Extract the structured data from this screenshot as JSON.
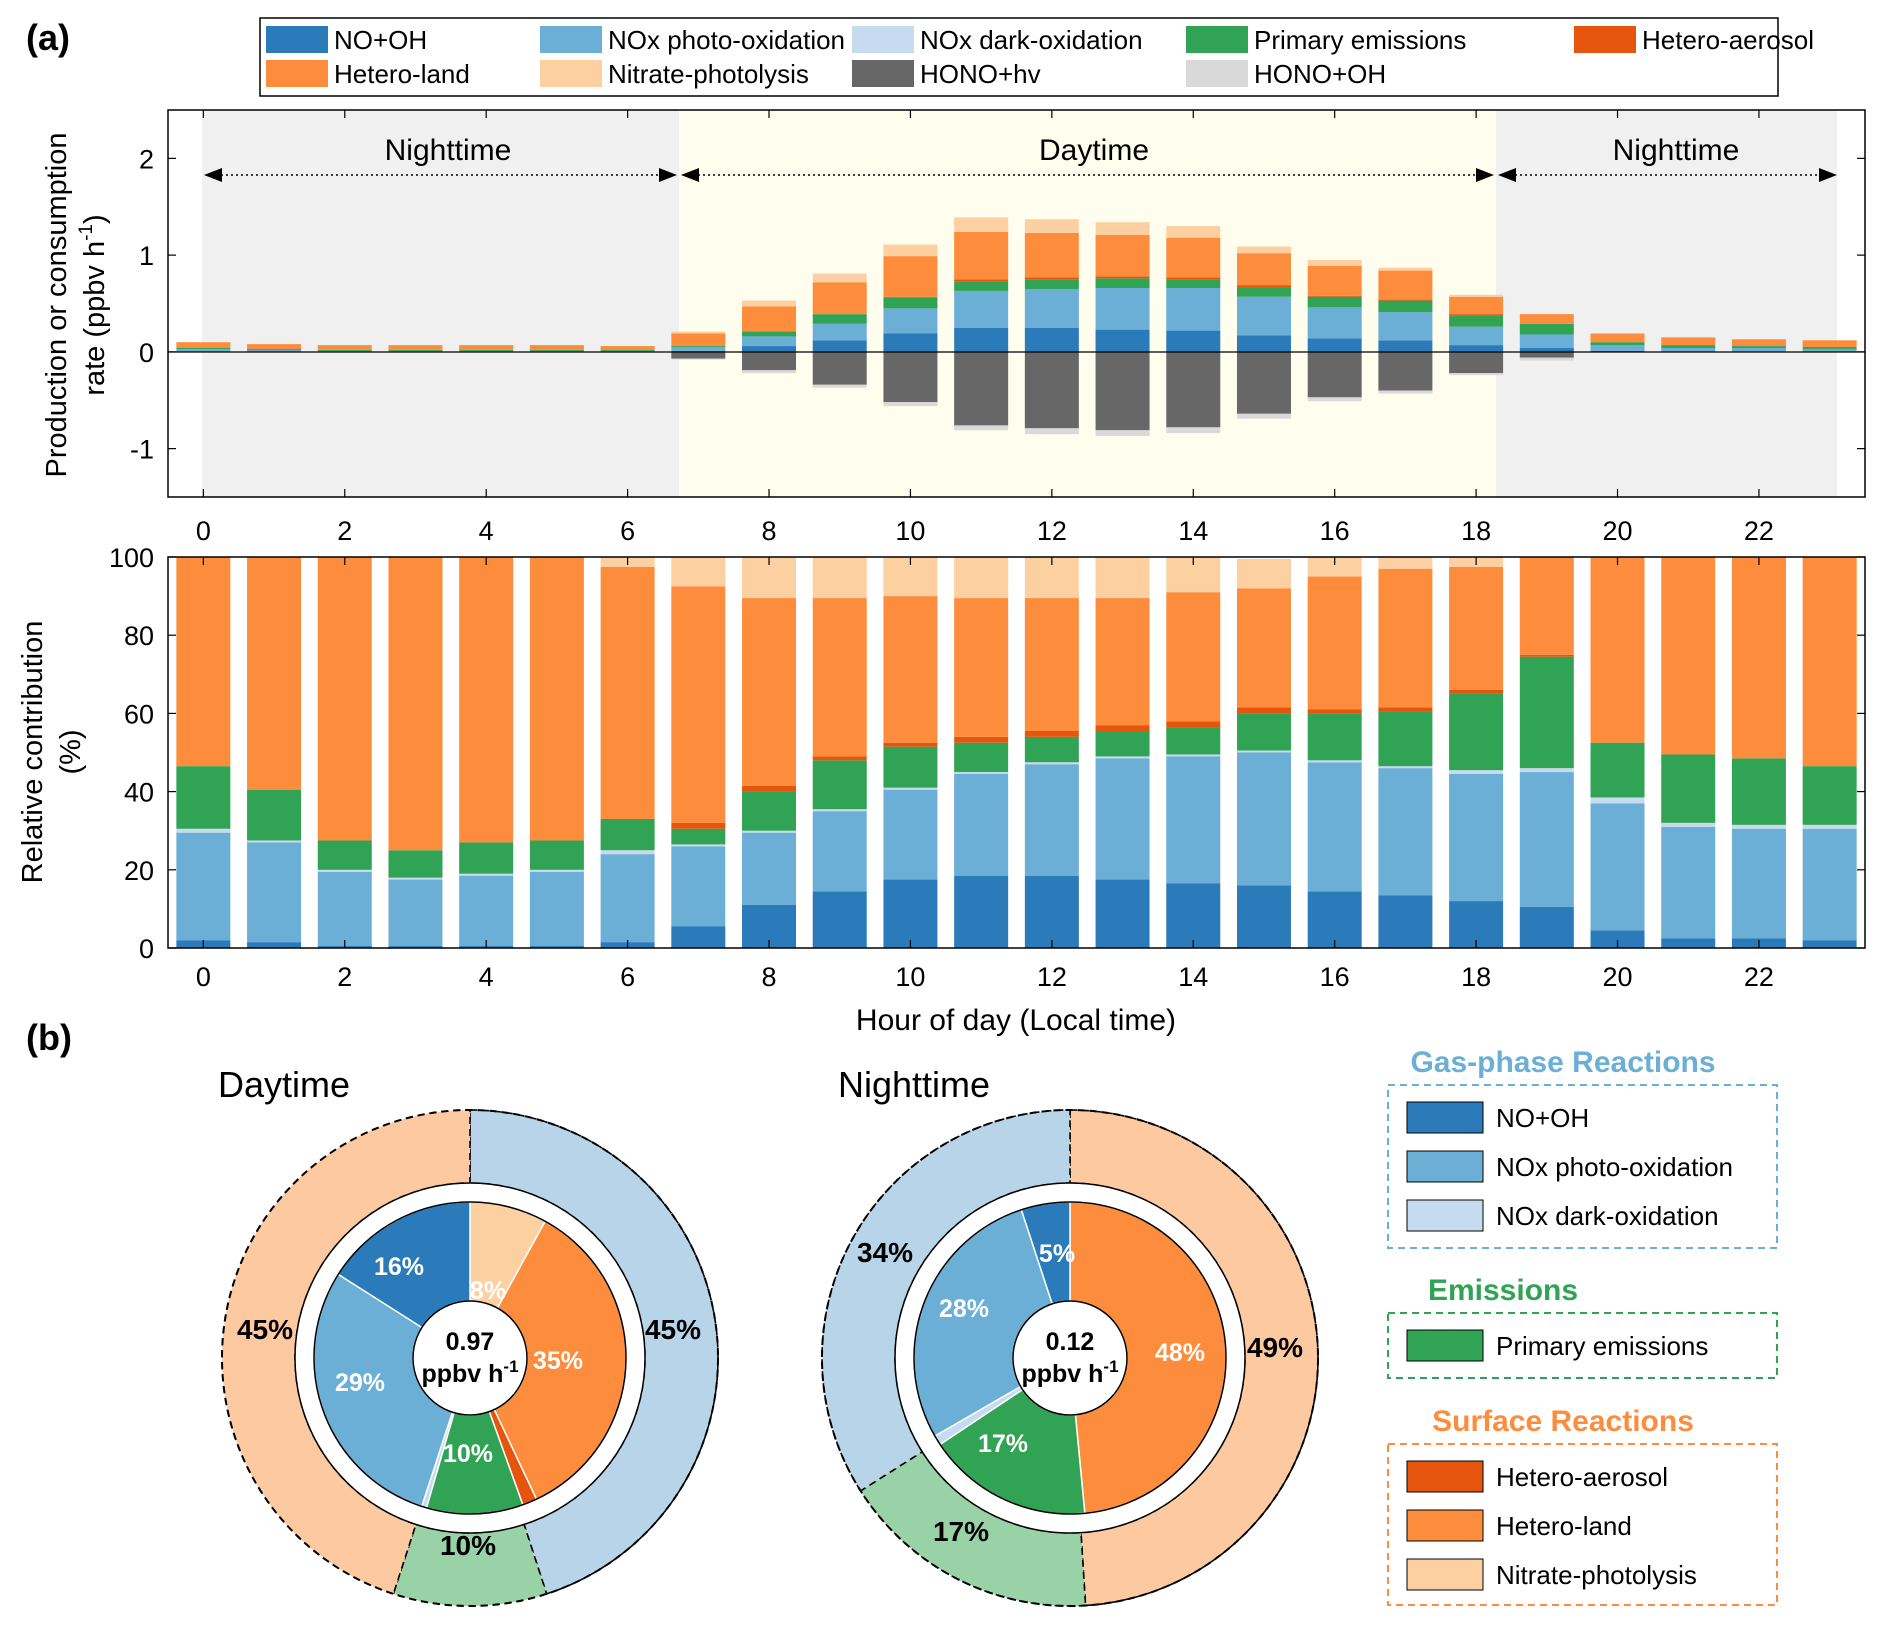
{
  "panel_labels": {
    "a": "(a)",
    "b": "(b)"
  },
  "colors": {
    "no_oh": "#2b7bba",
    "nox_photo": "#6baed6",
    "nox_dark": "#c6dbef",
    "primary": "#31a354",
    "hetero_aerosol": "#e6550d",
    "hetero_land": "#fd8d3c",
    "nitrate": "#fdd0a2",
    "hono_hv": "#676767",
    "hono_oh": "#d9d9d9",
    "night_bg": "#f0f0f0",
    "day_bg": "#fefdee"
  },
  "legend_top": {
    "items": [
      {
        "key": "no_oh",
        "label": "NO+OH"
      },
      {
        "key": "nox_photo",
        "label": "NOx photo-oxidation"
      },
      {
        "key": "nox_dark",
        "label": "NOx dark-oxidation"
      },
      {
        "key": "primary",
        "label": "Primary emissions"
      },
      {
        "key": "hetero_aerosol",
        "label": "Hetero-aerosol"
      },
      {
        "key": "hetero_land",
        "label": "Hetero-land"
      },
      {
        "key": "nitrate",
        "label": "Nitrate-photolysis"
      },
      {
        "key": "hono_hv",
        "label": "HONO+hv"
      },
      {
        "key": "hono_oh",
        "label": "HONO+OH"
      }
    ]
  },
  "period_labels": {
    "night1": "Nighttime",
    "day": "Daytime",
    "night2": "Nighttime"
  },
  "legend_right": {
    "groups": [
      {
        "title": "Gas-phase Reactions",
        "title_color": "#6baed6",
        "border_color": "#6baed6",
        "items": [
          {
            "key": "no_oh",
            "label": "NO+OH"
          },
          {
            "key": "nox_photo",
            "label": "NOx photo-oxidation"
          },
          {
            "key": "nox_dark",
            "label": "NOx dark-oxidation"
          }
        ]
      },
      {
        "title": "Emissions",
        "title_color": "#31a354",
        "border_color": "#31a354",
        "items": [
          {
            "key": "primary",
            "label": "Primary emissions"
          }
        ]
      },
      {
        "title": "Surface Reactions",
        "title_color": "#fd8d3c",
        "border_color": "#fd8d3c",
        "items": [
          {
            "key": "hetero_aerosol",
            "label": "Hetero-aerosol"
          },
          {
            "key": "hetero_land",
            "label": "Hetero-land"
          },
          {
            "key": "nitrate",
            "label": "Nitrate-photolysis"
          }
        ]
      }
    ]
  },
  "chart_data": [
    {
      "type": "bar",
      "stacked": true,
      "title": "",
      "xlabel": "",
      "ylabel": "Production or consumption rate (ppbv h-1)",
      "ylabel_line1": "Production or consumption",
      "ylabel_line2": "rate (ppbv h",
      "ylabel_sup": "-1",
      "ylabel_close": ")",
      "xlim": [
        -0.5,
        23.5
      ],
      "ylim": [
        -1.5,
        2.5
      ],
      "xticks": [
        0,
        2,
        4,
        6,
        8,
        10,
        12,
        14,
        16,
        18,
        20,
        22
      ],
      "yticks": [
        -1,
        0,
        1,
        2
      ],
      "x": [
        0,
        1,
        2,
        3,
        4,
        5,
        6,
        7,
        8,
        9,
        10,
        11,
        12,
        13,
        14,
        15,
        16,
        17,
        18,
        19,
        20,
        21,
        22,
        23
      ],
      "series": [
        {
          "key": "no_oh",
          "name": "NO+OH",
          "values": [
            0,
            0,
            0,
            0,
            0,
            0,
            0,
            0.01,
            0.06,
            0.12,
            0.19,
            0.25,
            0.25,
            0.23,
            0.22,
            0.17,
            0.14,
            0.12,
            0.07,
            0.04,
            0.01,
            0,
            0,
            0
          ]
        },
        {
          "key": "nox_photo",
          "name": "NOx photo-oxidation",
          "values": [
            0.03,
            0.02,
            0.01,
            0.01,
            0.01,
            0.01,
            0.01,
            0.04,
            0.1,
            0.17,
            0.26,
            0.38,
            0.4,
            0.43,
            0.44,
            0.4,
            0.32,
            0.29,
            0.19,
            0.14,
            0.06,
            0.04,
            0.04,
            0.03
          ]
        },
        {
          "key": "nox_dark",
          "name": "NOx dark-oxidation",
          "values": [
            0,
            0,
            0,
            0,
            0,
            0,
            0,
            0,
            0,
            0,
            0,
            0,
            0,
            0,
            0,
            0,
            0,
            0,
            0,
            0,
            0,
            0,
            0,
            0
          ]
        },
        {
          "key": "primary",
          "name": "Primary emissions",
          "values": [
            0.01,
            0.01,
            0.01,
            0.01,
            0.01,
            0.01,
            0.01,
            0.01,
            0.05,
            0.1,
            0.11,
            0.1,
            0.1,
            0.1,
            0.09,
            0.1,
            0.11,
            0.12,
            0.12,
            0.11,
            0.03,
            0.03,
            0.02,
            0.02
          ]
        },
        {
          "key": "hetero_aerosol",
          "name": "Hetero-aerosol",
          "values": [
            0,
            0,
            0,
            0,
            0,
            0,
            0,
            0,
            0,
            0,
            0.01,
            0.02,
            0.02,
            0.02,
            0.02,
            0.02,
            0.01,
            0.01,
            0.01,
            0,
            0,
            0,
            0,
            0
          ]
        },
        {
          "key": "hetero_land",
          "name": "Hetero-land",
          "values": [
            0.06,
            0.05,
            0.05,
            0.05,
            0.05,
            0.05,
            0.04,
            0.13,
            0.26,
            0.33,
            0.42,
            0.49,
            0.46,
            0.43,
            0.41,
            0.33,
            0.31,
            0.3,
            0.18,
            0.1,
            0.09,
            0.08,
            0.07,
            0.07
          ]
        },
        {
          "key": "nitrate",
          "name": "Nitrate-photolysis",
          "values": [
            0,
            0,
            0,
            0,
            0,
            0,
            0,
            0.02,
            0.06,
            0.09,
            0.12,
            0.15,
            0.14,
            0.13,
            0.12,
            0.07,
            0.06,
            0.03,
            0.02,
            0,
            0,
            0,
            0,
            0
          ]
        },
        {
          "key": "hono_hv",
          "name": "HONO+hv",
          "values": [
            0,
            0,
            0,
            0,
            0,
            0,
            0,
            -0.07,
            -0.19,
            -0.34,
            -0.52,
            -0.76,
            -0.79,
            -0.81,
            -0.78,
            -0.64,
            -0.47,
            -0.4,
            -0.22,
            -0.06,
            0,
            0,
            0,
            0
          ]
        },
        {
          "key": "hono_oh",
          "name": "HONO+OH",
          "values": [
            0,
            0,
            0,
            0,
            0,
            0,
            0,
            -0.01,
            -0.03,
            -0.03,
            -0.04,
            -0.05,
            -0.06,
            -0.06,
            -0.06,
            -0.05,
            -0.04,
            -0.03,
            -0.02,
            -0.03,
            0,
            0,
            0,
            0
          ]
        }
      ]
    },
    {
      "type": "bar",
      "stacked": true,
      "title": "",
      "xlabel": "Hour of day (Local time)",
      "ylabel": "Relative contribution (%)",
      "ylabel_line1": "Relative contribution",
      "ylabel_line2": "(%)",
      "xlim": [
        -0.5,
        23.5
      ],
      "ylim": [
        0,
        100
      ],
      "xticks": [
        0,
        2,
        4,
        6,
        8,
        10,
        12,
        14,
        16,
        18,
        20,
        22
      ],
      "yticks": [
        0,
        20,
        40,
        60,
        80,
        100
      ],
      "x": [
        0,
        1,
        2,
        3,
        4,
        5,
        6,
        7,
        8,
        9,
        10,
        11,
        12,
        13,
        14,
        15,
        16,
        17,
        18,
        19,
        20,
        21,
        22,
        23
      ],
      "series": [
        {
          "key": "no_oh",
          "name": "NO+OH",
          "values": [
            2,
            1.5,
            0.5,
            0.5,
            0.5,
            0.5,
            1.5,
            5.5,
            11,
            14.5,
            17.5,
            18.5,
            18.5,
            17.5,
            16.5,
            16,
            14.5,
            13.5,
            12,
            10.5,
            4.5,
            2.5,
            2.5,
            2
          ]
        },
        {
          "key": "nox_photo",
          "name": "NOx photo-oxidation",
          "values": [
            27.5,
            25.5,
            19,
            17,
            18,
            19,
            22.5,
            20.5,
            18.5,
            20.5,
            23,
            26,
            28.5,
            31,
            32.5,
            34,
            33,
            32.5,
            32.5,
            34.5,
            32.5,
            28.5,
            28,
            28.5
          ]
        },
        {
          "key": "nox_dark",
          "name": "NOx dark-oxidation",
          "values": [
            1,
            0.5,
            0.5,
            0.5,
            0.5,
            0.5,
            1,
            0.5,
            0.5,
            0.5,
            0.5,
            0.5,
            0.5,
            0.5,
            0.5,
            0.5,
            0.5,
            0.5,
            1,
            1,
            1.5,
            1,
            1,
            1
          ]
        },
        {
          "key": "primary",
          "name": "Primary emissions",
          "values": [
            16,
            13,
            7.5,
            7,
            8,
            7.5,
            8,
            4,
            10,
            12.5,
            10.5,
            7.5,
            6.5,
            6.5,
            7,
            9.5,
            12,
            14,
            19.5,
            28.5,
            14,
            17.5,
            17,
            15
          ]
        },
        {
          "key": "hetero_aerosol",
          "name": "Hetero-aerosol",
          "values": [
            0,
            0,
            0,
            0,
            0,
            0,
            0,
            1.5,
            1.5,
            1,
            1,
            1.5,
            1.5,
            1.5,
            1.5,
            1.5,
            1,
            1,
            1,
            0.5,
            0,
            0,
            0,
            0
          ]
        },
        {
          "key": "hetero_land",
          "name": "Hetero-land",
          "values": [
            53.5,
            59.5,
            72.5,
            75,
            73,
            72.5,
            64.5,
            60.5,
            48,
            40.5,
            37.5,
            35.5,
            34,
            32.5,
            33,
            30.5,
            34,
            35.5,
            31.5,
            25,
            47.5,
            50.5,
            51.5,
            53.5
          ]
        },
        {
          "key": "nitrate",
          "name": "Nitrate-photolysis",
          "values": [
            0,
            0,
            0,
            0,
            0,
            0,
            2.5,
            7.5,
            10.5,
            10.5,
            10,
            10.5,
            10.5,
            10.5,
            9,
            7.5,
            5,
            3,
            2.5,
            0,
            0,
            0,
            0,
            0
          ]
        }
      ]
    },
    {
      "type": "pie",
      "subtype": "nested-donut",
      "title": "Daytime",
      "center_value": "0.97",
      "center_unit": "ppbv h",
      "center_unit_sup": "-1",
      "outer": [
        {
          "key": "nox_dark",
          "name": "Gas-phase reactions",
          "value": 45,
          "label": "45%"
        },
        {
          "key": "primary",
          "name": "Emissions",
          "value": 10,
          "label": "10%"
        },
        {
          "key": "nitrate",
          "name": "Surface reactions",
          "value": 45,
          "label": "45%"
        }
      ],
      "inner": [
        {
          "key": "nitrate",
          "name": "Nitrate-photolysis",
          "value": 8,
          "label": "8%"
        },
        {
          "key": "hetero_land",
          "name": "Hetero-land",
          "value": 35,
          "label": "35%"
        },
        {
          "key": "hetero_aerosol",
          "name": "Hetero-aerosol",
          "value": 1.5,
          "label": ""
        },
        {
          "key": "primary",
          "name": "Primary emissions",
          "value": 10,
          "label": "10%"
        },
        {
          "key": "nox_dark",
          "name": "NOx dark-oxidation",
          "value": 0.5,
          "label": ""
        },
        {
          "key": "nox_photo",
          "name": "NOx photo-oxidation",
          "value": 29,
          "label": "29%"
        },
        {
          "key": "no_oh",
          "name": "NO+OH",
          "value": 16,
          "label": "16%"
        }
      ]
    },
    {
      "type": "pie",
      "subtype": "nested-donut",
      "title": "Nighttime",
      "center_value": "0.12",
      "center_unit": "ppbv h",
      "center_unit_sup": "-1",
      "outer": [
        {
          "key": "nitrate",
          "name": "Surface reactions",
          "value": 49,
          "label": "49%"
        },
        {
          "key": "primary",
          "name": "Emissions",
          "value": 17,
          "label": "17%"
        },
        {
          "key": "nox_dark",
          "name": "Gas-phase reactions",
          "value": 34,
          "label": "34%"
        }
      ],
      "inner": [
        {
          "key": "hetero_land",
          "name": "Hetero-land",
          "value": 48,
          "label": "48%"
        },
        {
          "key": "primary",
          "name": "Primary emissions",
          "value": 17,
          "label": "17%"
        },
        {
          "key": "nox_dark",
          "name": "NOx dark-oxidation",
          "value": 1,
          "label": ""
        },
        {
          "key": "nox_photo",
          "name": "NOx photo-oxidation",
          "value": 28,
          "label": "28%"
        },
        {
          "key": "no_oh",
          "name": "NO+OH",
          "value": 5,
          "label": "5%"
        }
      ]
    }
  ]
}
